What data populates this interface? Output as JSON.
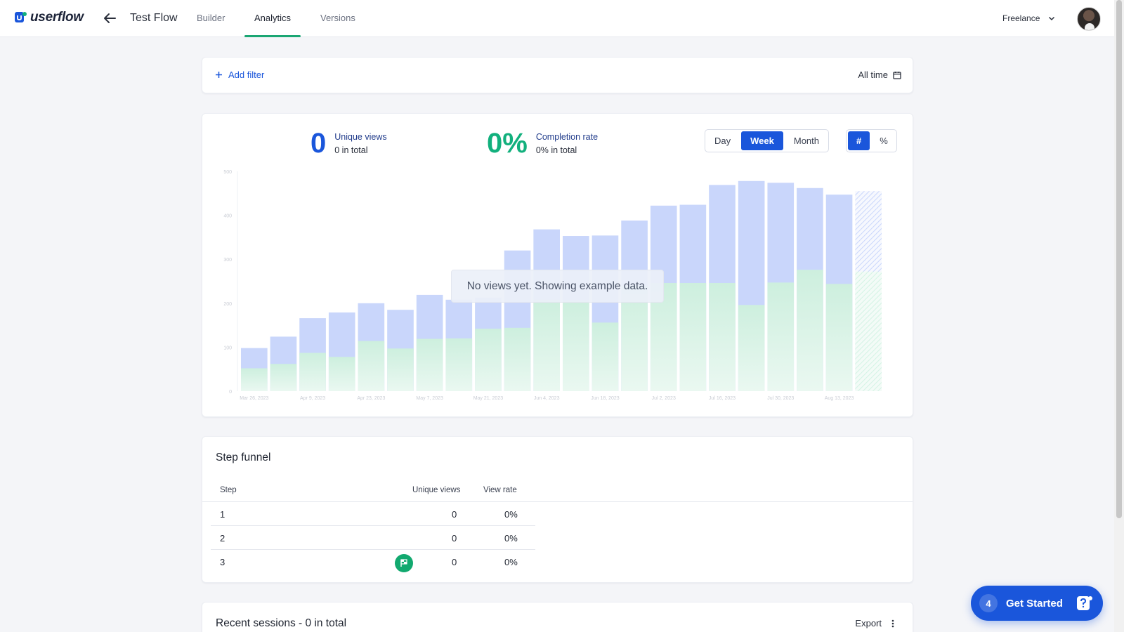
{
  "header": {
    "logo_text": "userflow",
    "flow_title": "Test Flow",
    "tabs": [
      {
        "label": "Builder",
        "active": false
      },
      {
        "label": "Analytics",
        "active": true
      },
      {
        "label": "Versions",
        "active": false
      }
    ],
    "workspace": "Freelance"
  },
  "filters": {
    "add_filter_label": "Add filter",
    "date_range": "All time"
  },
  "stats": {
    "unique_views_value": "0",
    "unique_views_label": "Unique views",
    "unique_views_sub": "0 in total",
    "completion_value": "0%",
    "completion_label": "Completion rate",
    "completion_sub": "0% in total"
  },
  "period_toggle": {
    "options": [
      "Day",
      "Week",
      "Month"
    ],
    "selected": "Week"
  },
  "unit_toggle": {
    "options": [
      "#",
      "%"
    ],
    "selected": "#"
  },
  "chart_overlay": "No views yet. Showing example data.",
  "chart_data": {
    "type": "bar",
    "stacked": false,
    "ylim": [
      0,
      500
    ],
    "yticks": [
      0,
      100,
      200,
      300,
      400,
      500
    ],
    "xtick_labels": [
      "Mar 26, 2023",
      "Apr 9, 2023",
      "Apr 23, 2023",
      "May 7, 2023",
      "May 21, 2023",
      "Jun 4, 2023",
      "Jun 18, 2023",
      "Jul 2, 2023",
      "Jul 16, 2023",
      "Jul 30, 2023",
      "Aug 13, 2023"
    ],
    "series": [
      {
        "values": [
          98,
          124,
          166,
          179,
          200,
          185,
          219,
          208,
          213,
          320,
          368,
          353,
          354,
          388,
          422,
          424,
          469,
          478,
          474,
          462,
          447,
          455
        ]
      },
      {
        "values": [
          52,
          62,
          87,
          78,
          114,
          97,
          119,
          120,
          142,
          144,
          208,
          207,
          156,
          240,
          246,
          246,
          246,
          196,
          247,
          276,
          244,
          272
        ]
      }
    ],
    "last_bar_partial": true,
    "colors": {
      "views": "#c9d6fb",
      "completions": "#d3f3e4"
    },
    "grid": false
  },
  "funnel": {
    "title": "Step funnel",
    "columns": [
      "Step",
      "Unique views",
      "View rate"
    ],
    "rows": [
      {
        "step": "1",
        "views": "0",
        "rate": "0%",
        "goal": false
      },
      {
        "step": "2",
        "views": "0",
        "rate": "0%",
        "goal": false
      },
      {
        "step": "3",
        "views": "0",
        "rate": "0%",
        "goal": true
      }
    ]
  },
  "sessions": {
    "title": "Recent sessions - 0 in total",
    "export_label": "Export"
  },
  "checklist": {
    "count": "4",
    "label": "Get Started"
  }
}
